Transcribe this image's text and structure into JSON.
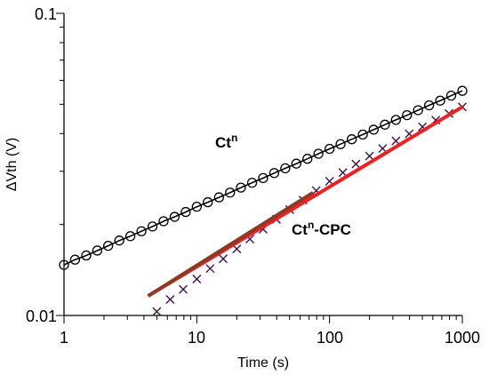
{
  "chart_data": {
    "type": "scatter",
    "title": "",
    "xlabel": "Time (s)",
    "ylabel": "ΔVth (V)",
    "x_scale": "log",
    "y_scale": "log",
    "xlim": [
      1,
      1000
    ],
    "ylim": [
      0.01,
      0.1
    ],
    "x_tick_labels": [
      "1",
      "10",
      "100",
      "1000"
    ],
    "y_tick_labels": [
      "0.01",
      "0.1"
    ],
    "grid": false,
    "legend": false,
    "annotations": [
      {
        "text": "Ct",
        "sup": "n",
        "tail": ""
      },
      {
        "text": "Ct",
        "sup": "n",
        "tail": "-CPC"
      }
    ],
    "series": [
      {
        "marker": "circle",
        "color": "#000000",
        "connected": true,
        "x": [
          1,
          1.21,
          1.47,
          1.78,
          2.15,
          2.61,
          3.16,
          3.83,
          4.64,
          5.62,
          6.81,
          8.25,
          10,
          12.1,
          14.7,
          17.8,
          21.5,
          26.1,
          31.6,
          38.3,
          46.4,
          56.2,
          68.1,
          82.5,
          100,
          121,
          147,
          178,
          215,
          261,
          316,
          383,
          464,
          562,
          681,
          825,
          1000
        ],
        "y": [
          0.0147,
          0.0153,
          0.0158,
          0.0164,
          0.017,
          0.0177,
          0.0183,
          0.019,
          0.0197,
          0.0205,
          0.0212,
          0.022,
          0.0229,
          0.0237,
          0.0246,
          0.0255,
          0.0265,
          0.0275,
          0.0285,
          0.0296,
          0.0307,
          0.0318,
          0.033,
          0.0343,
          0.0356,
          0.0369,
          0.0383,
          0.0397,
          0.0412,
          0.0428,
          0.0444,
          0.046,
          0.0478,
          0.0496,
          0.0514,
          0.0534,
          0.0554
        ]
      },
      {
        "marker": "x",
        "color": "#3a1050",
        "connected": false,
        "x": [
          5,
          6.3,
          7.9,
          10,
          12.6,
          15.8,
          20,
          25.1,
          31.6,
          39.8,
          50.1,
          63.1,
          79.4,
          100,
          126,
          158,
          200,
          251,
          316,
          398,
          501,
          631,
          794,
          1000
        ],
        "y": [
          0.0103,
          0.0113,
          0.0122,
          0.0132,
          0.0143,
          0.0154,
          0.0166,
          0.0179,
          0.0193,
          0.0208,
          0.0224,
          0.0241,
          0.0259,
          0.0278,
          0.0297,
          0.0317,
          0.0337,
          0.0357,
          0.0378,
          0.0399,
          0.0421,
          0.0443,
          0.0466,
          0.049
        ]
      },
      {
        "marker": "none",
        "color": "#f02020",
        "line_width": 4,
        "x": [
          4.3,
          1000
        ],
        "y": [
          0.0116,
          0.049
        ]
      },
      {
        "marker": "none",
        "color": "#8b3a22",
        "line_width": 4,
        "x": [
          4.3,
          75
        ],
        "y": [
          0.0116,
          0.0255
        ]
      }
    ]
  }
}
